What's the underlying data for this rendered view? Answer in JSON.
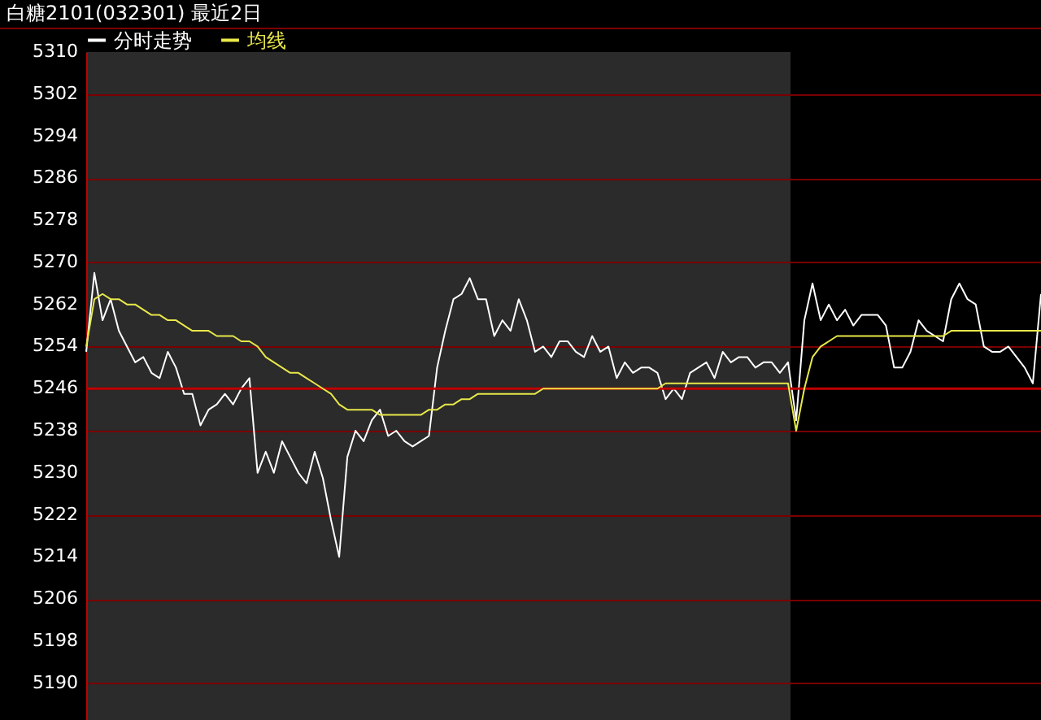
{
  "chart_data": {
    "type": "line",
    "title": "白糖2101(032301) 最近2日",
    "categories": [
      null,
      null,
      null,
      null,
      null,
      null,
      null,
      null,
      null,
      null,
      null,
      null,
      null,
      null,
      null,
      null,
      null,
      null,
      null,
      null,
      null,
      null,
      null,
      null,
      null,
      null,
      null,
      null,
      null,
      null,
      null,
      null,
      null,
      null,
      null,
      null,
      null,
      null,
      null,
      null,
      null,
      null,
      null,
      null,
      null,
      null,
      null,
      null,
      null,
      null,
      null,
      null,
      null,
      null,
      null,
      null,
      null,
      null,
      null,
      null,
      null,
      null,
      null,
      null,
      null,
      null,
      null,
      null,
      null,
      null,
      null,
      null,
      null,
      null,
      null,
      null,
      null,
      null,
      null,
      null,
      null,
      null,
      null,
      null,
      null,
      null,
      null,
      null,
      null,
      null,
      null,
      null,
      null,
      null,
      null,
      null,
      null,
      null,
      null,
      null,
      null,
      null,
      null,
      null,
      null,
      null,
      null,
      null,
      null,
      null,
      null,
      null,
      null,
      null,
      null,
      null,
      null,
      null
    ],
    "series": [
      {
        "name": "分时走势",
        "color": "#ffffff",
        "values": [
          5253,
          5268,
          5259,
          5263,
          5257,
          5254,
          5251,
          5252,
          5249,
          5248,
          5253,
          5250,
          5245,
          5245,
          5239,
          5242,
          5243,
          5245,
          5243,
          5246,
          5248,
          5230,
          5234,
          5230,
          5236,
          5233,
          5230,
          5228,
          5234,
          5229,
          5221,
          5214,
          5233,
          5238,
          5236,
          5240,
          5242,
          5237,
          5238,
          5236,
          5235,
          5236,
          5237,
          5250,
          5257,
          5263,
          5264,
          5267,
          5263,
          5263,
          5256,
          5259,
          5257,
          5263,
          5259,
          5253,
          5254,
          5252,
          5255,
          5255,
          5253,
          5252,
          5256,
          5253,
          5254,
          5248,
          5251,
          5249,
          5250,
          5250,
          5249,
          5244,
          5246,
          5244,
          5249,
          5250,
          5251,
          5248,
          5253,
          5251,
          5252,
          5252,
          5250,
          5251,
          5251,
          5249,
          5251,
          5240,
          5259,
          5266,
          5259,
          5262,
          5259,
          5261,
          5258,
          5260,
          5260,
          5260,
          5258,
          5250,
          5250,
          5253,
          5259,
          5257,
          5256,
          5255,
          5263,
          5266,
          5263,
          5262,
          5254,
          5253,
          5253,
          5254,
          5252,
          5250,
          5247,
          5264
        ]
      },
      {
        "name": "均线",
        "color": "#e8e84a",
        "values": [
          5254,
          5263,
          5264,
          5263,
          5263,
          5262,
          5262,
          5261,
          5260,
          5260,
          5259,
          5259,
          5258,
          5257,
          5257,
          5257,
          5256,
          5256,
          5256,
          5255,
          5255,
          5254,
          5252,
          5251,
          5250,
          5249,
          5249,
          5248,
          5247,
          5246,
          5245,
          5243,
          5242,
          5242,
          5242,
          5242,
          5241,
          5241,
          5241,
          5241,
          5241,
          5241,
          5242,
          5242,
          5243,
          5243,
          5244,
          5244,
          5245,
          5245,
          5245,
          5245,
          5245,
          5245,
          5245,
          5245,
          5246,
          5246,
          5246,
          5246,
          5246,
          5246,
          5246,
          5246,
          5246,
          5246,
          5246,
          5246,
          5246,
          5246,
          5246,
          5247,
          5247,
          5247,
          5247,
          5247,
          5247,
          5247,
          5247,
          5247,
          5247,
          5247,
          5247,
          5247,
          5247,
          5247,
          5247,
          5238,
          5246,
          5252,
          5254,
          5255,
          5256,
          5256,
          5256,
          5256,
          5256,
          5256,
          5256,
          5256,
          5256,
          5256,
          5256,
          5256,
          5256,
          5256,
          5257,
          5257,
          5257,
          5257,
          5257,
          5257,
          5257,
          5257,
          5257,
          5257,
          5257,
          5257
        ]
      }
    ],
    "ylim": [
      5183,
      5310
    ],
    "yticks": [
      5190,
      5198,
      5206,
      5214,
      5222,
      5230,
      5238,
      5246,
      5254,
      5262,
      5270,
      5278,
      5286,
      5294,
      5302,
      5310
    ],
    "ref_lines": [
      {
        "axis": "y",
        "value": 5246,
        "color": "#c00000"
      }
    ],
    "grid": "y",
    "legend": "top left",
    "tick_labels": "y"
  }
}
